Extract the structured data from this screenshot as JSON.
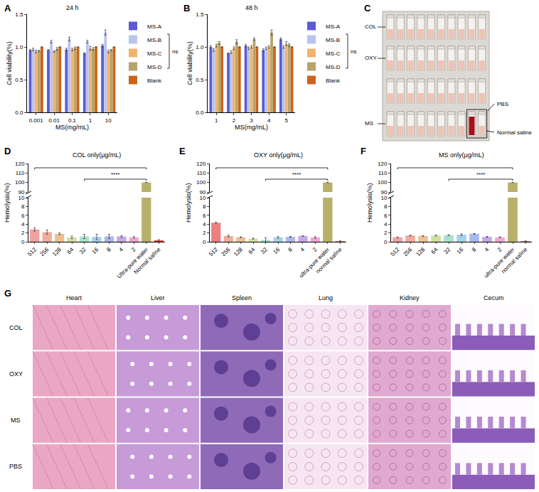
{
  "chart_data": [
    {
      "label": "A",
      "type": "bar",
      "title": "24 h",
      "xlabel": "MS(mg/mL)",
      "ylabel": "Cell viability(%)",
      "categories": [
        "0.001",
        "0.01",
        "0.1",
        "1",
        "10"
      ],
      "series": [
        {
          "name": "MS-A",
          "color": "#5b5bd6",
          "values": [
            0.95,
            0.95,
            0.96,
            0.9,
            1.02
          ],
          "errors": [
            0.01,
            0.01,
            0.02,
            0.01,
            0.02
          ]
        },
        {
          "name": "MS-B",
          "color": "#b9c4f1",
          "values": [
            0.96,
            1.08,
            1.12,
            1.08,
            1.22
          ],
          "errors": [
            0.02,
            0.02,
            0.03,
            0.02,
            0.04
          ]
        },
        {
          "name": "MS-C",
          "color": "#f0b46a",
          "values": [
            0.93,
            0.93,
            0.96,
            0.98,
            0.93
          ],
          "errors": [
            0.02,
            0.01,
            0.02,
            0.03,
            0.02
          ]
        },
        {
          "name": "MS-D",
          "color": "#b7a36c",
          "values": [
            0.94,
            0.97,
            0.98,
            0.97,
            0.95
          ],
          "errors": [
            0.01,
            0.02,
            0.02,
            0.02,
            0.01
          ]
        },
        {
          "name": "Blank",
          "color": "#c8651b",
          "values": [
            1.0,
            1.0,
            1.0,
            1.0,
            1.0
          ],
          "errors": [
            0,
            0,
            0,
            0,
            0
          ]
        }
      ],
      "ylim": [
        0,
        1.5
      ],
      "yticks": [
        {
          "value": 0,
          "label": "0.0"
        },
        {
          "value": 0.5,
          "label": "0.5"
        },
        {
          "value": 1,
          "label": "1.0"
        },
        {
          "value": 1.5,
          "label": "1.5"
        }
      ],
      "grid": false,
      "legend": "right",
      "significance": {
        "label": "ns"
      }
    },
    {
      "label": "B",
      "type": "bar",
      "title": "48 h",
      "xlabel": "MS(mg/mL)",
      "ylabel": "Cell viability(%)",
      "categories": [
        "1",
        "2",
        "3",
        "4",
        "5"
      ],
      "series": [
        {
          "name": "MS-A",
          "color": "#5b5bd6",
          "values": [
            1.0,
            0.9,
            1.02,
            0.95,
            1.12
          ],
          "errors": [
            0.02,
            0.01,
            0.02,
            0.02,
            0.02
          ]
        },
        {
          "name": "MS-B",
          "color": "#b9c4f1",
          "values": [
            0.95,
            0.92,
            0.98,
            0.98,
            1.0
          ],
          "errors": [
            0.02,
            0.02,
            0.02,
            0.02,
            0.02
          ]
        },
        {
          "name": "MS-C",
          "color": "#f0b46a",
          "values": [
            1.02,
            0.98,
            1.0,
            1.0,
            1.05
          ],
          "errors": [
            0.02,
            0.02,
            0.02,
            0.02,
            0.03
          ]
        },
        {
          "name": "MS-D",
          "color": "#b7a36c",
          "values": [
            1.06,
            1.08,
            1.12,
            1.22,
            1.03
          ],
          "errors": [
            0.02,
            0.03,
            0.02,
            0.04,
            0.02
          ]
        },
        {
          "name": "Blank",
          "color": "#c8651b",
          "values": [
            1.0,
            1.0,
            1.0,
            1.0,
            1.0
          ],
          "errors": [
            0,
            0,
            0,
            0,
            0
          ]
        }
      ],
      "ylim": [
        0,
        1.5
      ],
      "yticks": [
        {
          "value": 0,
          "label": "0.0"
        },
        {
          "value": 0.5,
          "label": "0.5"
        },
        {
          "value": 1,
          "label": "1.0"
        },
        {
          "value": 1.5,
          "label": "1.5"
        }
      ],
      "grid": false,
      "legend": "right",
      "significance": {
        "label": "ns"
      }
    },
    {
      "label": "D",
      "type": "bar",
      "title": "COL only(μg/mL)",
      "ylabel": "Hemolysis(%)",
      "categories": [
        "512",
        "256",
        "128",
        "64",
        "32",
        "16",
        "8",
        "4",
        "2",
        "Ultra-pure water",
        "Normal saline"
      ],
      "values": [
        2.8,
        2.2,
        1.8,
        1.0,
        1.2,
        1.1,
        1.2,
        1.2,
        1.0,
        100,
        0.3
      ],
      "errors": [
        0.4,
        0.5,
        0.2,
        0.3,
        0.5,
        0.6,
        0.5,
        0.2,
        0.2,
        0,
        0.2
      ],
      "colors": [
        "#f2a1a1",
        "#f0ad9b",
        "#edc095",
        "#cfe0a0",
        "#a8e2cf",
        "#a3d2ee",
        "#aab8ee",
        "#c6a8ea",
        "#f1a7d2",
        "#b7b06a",
        "#e3342a"
      ],
      "ylim": [
        0,
        120
      ],
      "ybreak": [
        10,
        90
      ],
      "yticks": [
        0,
        2,
        4,
        6,
        8,
        10,
        90,
        100,
        110,
        120
      ],
      "grid": false,
      "significance": {
        "label": "****",
        "comparisons": [
          [
            "32",
            "Ultra-pure water"
          ],
          [
            "512",
            "Ultra-pure water"
          ]
        ]
      }
    },
    {
      "label": "E",
      "type": "bar",
      "title": "OXY only(μg/mL)",
      "ylabel": "Hemolysis(%)",
      "categories": [
        "512",
        "256",
        "128",
        "64",
        "32",
        "16",
        "8",
        "4",
        "2",
        "ultra-pure water",
        "normal saline"
      ],
      "values": [
        4.3,
        1.3,
        1.0,
        0.7,
        0.4,
        1.0,
        1.1,
        1.3,
        1.0,
        100,
        0.1
      ],
      "errors": [
        0.1,
        0.2,
        0.1,
        0.1,
        0.5,
        0.2,
        0.1,
        0.1,
        0.2,
        0,
        0.1
      ],
      "colors": [
        "#ee7f7f",
        "#f0ad9b",
        "#edc095",
        "#cfe0a0",
        "#a8e2cf",
        "#a3d2ee",
        "#aab8ee",
        "#c6a8ea",
        "#f1a7d2",
        "#b7b06a",
        "#e3342a"
      ],
      "ylim": [
        0,
        120
      ],
      "ybreak": [
        10,
        90
      ],
      "yticks": [
        0,
        2,
        4,
        6,
        8,
        10,
        90,
        100,
        110,
        120
      ],
      "grid": false,
      "significance": {
        "label": "****",
        "comparisons": [
          [
            "32",
            "ultra-pure water"
          ],
          [
            "512",
            "ultra-pure water"
          ]
        ]
      }
    },
    {
      "label": "F",
      "type": "bar",
      "title": "MS only(μg/mL)",
      "ylabel": "Hemolysis(%)",
      "categories": [
        "512",
        "256",
        "128",
        "64",
        "32",
        "16",
        "8",
        "4",
        "2",
        "ultra-pure water",
        "normal saline"
      ],
      "values": [
        1.0,
        1.4,
        1.3,
        1.4,
        1.5,
        1.6,
        1.8,
        1.1,
        1.0,
        100,
        0.1
      ],
      "errors": [
        0.1,
        0.1,
        0.1,
        0.1,
        0.1,
        0.2,
        0.1,
        0.1,
        0.1,
        0,
        0.1
      ],
      "colors": [
        "#f2a1a1",
        "#f0ad9b",
        "#edc095",
        "#cfe0a0",
        "#a8e2cf",
        "#a3d2ee",
        "#aab8ee",
        "#c6a8ea",
        "#f1a7d2",
        "#b7b06a",
        "#e3342a"
      ],
      "ylim": [
        0,
        120
      ],
      "ybreak": [
        10,
        90
      ],
      "yticks": [
        0,
        2,
        4,
        6,
        8,
        10,
        90,
        100,
        110,
        120
      ],
      "grid": false,
      "significance": {
        "label": "****",
        "comparisons": [
          [
            "32",
            "ultra-pure water"
          ],
          [
            "512",
            "ultra-pure water"
          ]
        ]
      }
    }
  ],
  "photo_panels": [
    {
      "label": "C",
      "left_labels": [
        "COL",
        "OXY",
        "MS"
      ],
      "right_labels": [
        "PBS",
        "Normal saline"
      ]
    },
    {
      "label": "G",
      "columns": [
        "Heart",
        "Liver",
        "Spleen",
        "Lung",
        "Kidney",
        "Cecum"
      ],
      "rows": [
        "COL",
        "OXY",
        "MS",
        "PBS"
      ]
    }
  ]
}
